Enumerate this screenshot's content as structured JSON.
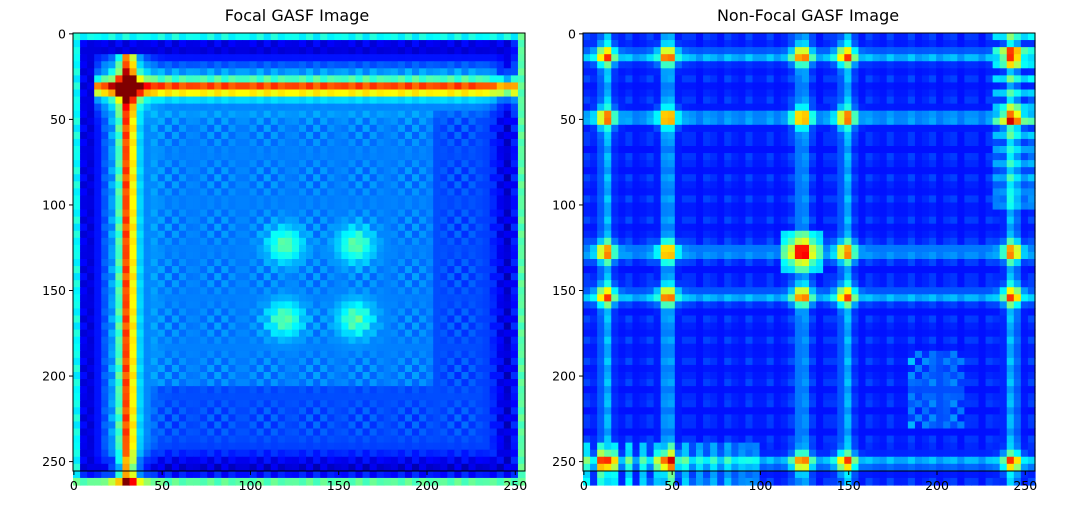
{
  "chart_data": [
    {
      "type": "heatmap",
      "title": "Focal GASF Image",
      "xlabel": "",
      "ylabel": "",
      "xlim": [
        0,
        255
      ],
      "ylim": [
        255,
        0
      ],
      "xticks": [
        0,
        50,
        100,
        150,
        200,
        250
      ],
      "yticks": [
        0,
        50,
        100,
        150,
        200,
        250
      ],
      "colormap": "jet",
      "grid": false,
      "features": [
        {
          "type": "cross",
          "center": 31,
          "intensity": 1.0
        },
        {
          "type": "hotspot",
          "x": 120,
          "y": 120,
          "intensity": 0.55
        },
        {
          "type": "hotspot",
          "x": 160,
          "y": 120,
          "intensity": 0.55
        },
        {
          "type": "hotspot",
          "x": 120,
          "y": 162,
          "intensity": 0.55
        },
        {
          "type": "hotspot",
          "x": 160,
          "y": 162,
          "intensity": 0.55
        }
      ]
    },
    {
      "type": "heatmap",
      "title": "Non-Focal GASF Image",
      "xlabel": "",
      "ylabel": "",
      "xlim": [
        0,
        255
      ],
      "ylim": [
        255,
        0
      ],
      "xticks": [
        0,
        50,
        100,
        150,
        200,
        250
      ],
      "yticks": [
        0,
        50,
        100,
        150,
        200,
        250
      ],
      "colormap": "jet",
      "grid": false,
      "features": [
        {
          "type": "lines",
          "positions": [
            13,
            48,
            124,
            149,
            243
          ],
          "intensity": 1.0
        },
        {
          "type": "block",
          "x": [
            232,
            255
          ],
          "y": [
            0,
            100
          ],
          "intensity": 0.7
        },
        {
          "type": "block",
          "x": [
            0,
            100
          ],
          "y": [
            230,
            255
          ],
          "intensity": 0.7
        },
        {
          "type": "block",
          "x": [
            110,
            140
          ],
          "y": [
            110,
            140
          ],
          "intensity": 0.9
        }
      ]
    }
  ]
}
